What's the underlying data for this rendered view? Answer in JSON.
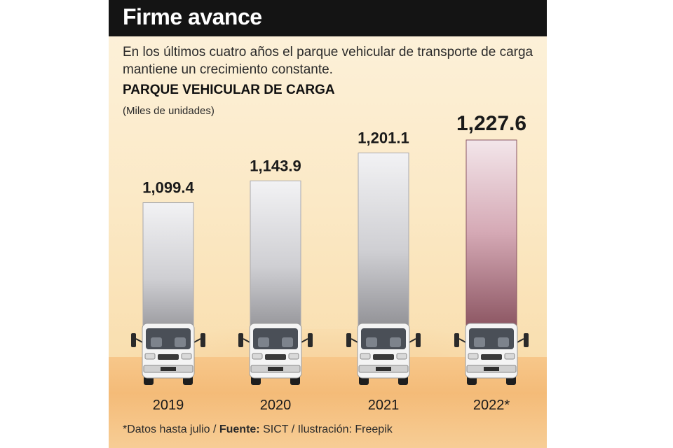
{
  "header": {
    "title": "Firme avance"
  },
  "subtitle": "En los últimos cuatro años el parque vehicular de transporte de carga mantiene un crecimiento constante.",
  "chart_heading": "PARQUE VEHICULAR DE CARGA",
  "chart_unit": "(Miles de unidades)",
  "footnote": {
    "note": "*Datos hasta julio / ",
    "source_label": "Fuente:",
    "source_rest": " SICT / Ilustración: Freepik"
  },
  "chart_data": {
    "type": "bar",
    "title": "PARQUE VEHICULAR DE CARGA",
    "ylabel": "(Miles de unidades)",
    "categories": [
      "2019",
      "2020",
      "2021",
      "2022*"
    ],
    "values": [
      1099.4,
      1143.9,
      1201.1,
      1227.6
    ],
    "value_labels": [
      "1,099.4",
      "1,143.9",
      "1,201.1",
      "1,227.6"
    ],
    "highlight_index": 3,
    "colors": {
      "bar": "#c4c4c8",
      "highlight": "#b07a88",
      "label": "#1a1a1a"
    }
  }
}
